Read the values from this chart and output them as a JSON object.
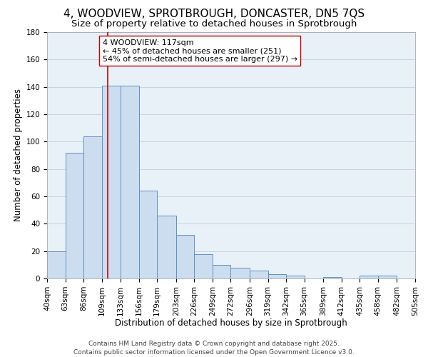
{
  "title": "4, WOODVIEW, SPROTBROUGH, DONCASTER, DN5 7QS",
  "subtitle": "Size of property relative to detached houses in Sprotbrough",
  "xlabel": "Distribution of detached houses by size in Sprotbrough",
  "ylabel": "Number of detached properties",
  "bar_color": "#ccddf0",
  "bar_edge_color": "#6090c8",
  "background_color": "#ffffff",
  "plot_bg_color": "#e8f0f8",
  "grid_color": "#c8d4e4",
  "bins": [
    40,
    63,
    86,
    109,
    133,
    156,
    179,
    203,
    226,
    249,
    272,
    296,
    319,
    342,
    365,
    389,
    412,
    435,
    458,
    482,
    505
  ],
  "bin_labels": [
    "40sqm",
    "63sqm",
    "86sqm",
    "109sqm",
    "133sqm",
    "156sqm",
    "179sqm",
    "203sqm",
    "226sqm",
    "249sqm",
    "272sqm",
    "296sqm",
    "319sqm",
    "342sqm",
    "365sqm",
    "389sqm",
    "412sqm",
    "435sqm",
    "458sqm",
    "482sqm",
    "505sqm"
  ],
  "values": [
    20,
    92,
    104,
    141,
    141,
    64,
    46,
    32,
    18,
    10,
    8,
    6,
    3,
    2,
    0,
    1,
    0,
    2,
    2,
    0
  ],
  "ylim": [
    0,
    180
  ],
  "yticks": [
    0,
    20,
    40,
    60,
    80,
    100,
    120,
    140,
    160,
    180
  ],
  "vline_x": 117,
  "vline_color": "#cc0000",
  "annotation_text": "4 WOODVIEW: 117sqm\n← 45% of detached houses are smaller (251)\n54% of semi-detached houses are larger (297) →",
  "footer_text": "Contains HM Land Registry data © Crown copyright and database right 2025.\nContains public sector information licensed under the Open Government Licence v3.0.",
  "title_fontsize": 11,
  "subtitle_fontsize": 9.5,
  "axis_label_fontsize": 8.5,
  "tick_fontsize": 7.5,
  "annotation_fontsize": 8,
  "footer_fontsize": 6.5
}
